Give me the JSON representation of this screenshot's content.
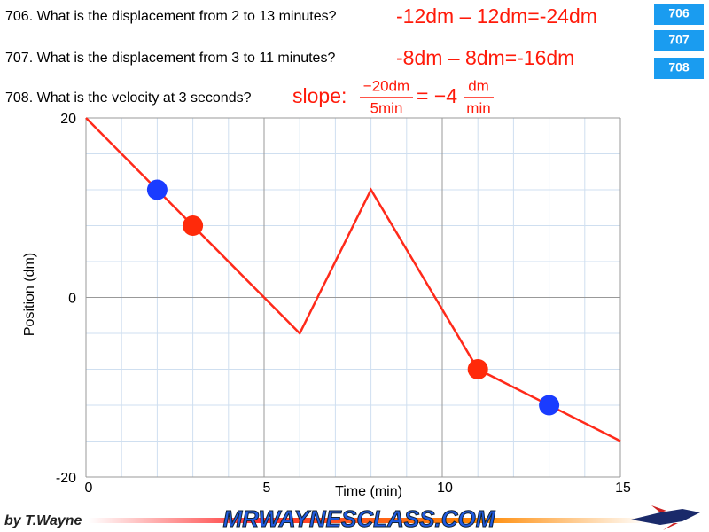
{
  "questions": [
    {
      "text": "706. What is the displacement from 2 to 13 minutes?",
      "answer": "-12dm – 12dm=-24dm"
    },
    {
      "text": "707. What is the displacement from 3 to 11 minutes?",
      "answer": "-8dm – 8dm=-16dm"
    },
    {
      "text": "708. What is the velocity at 3 seconds?",
      "answer": {
        "label": "slope:",
        "numerator": "−20dm",
        "denominator": "5min",
        "result": "= −4",
        "unit_numerator": "dm",
        "unit_denominator": "min"
      }
    }
  ],
  "buttons": [
    "706",
    "707",
    "708"
  ],
  "footer": {
    "author": "by T.Wayne",
    "logo": "MRWAYNESCLASS.COM"
  },
  "chart_data": {
    "type": "line",
    "x_label": "Time (min)",
    "y_label": "Position (dm)",
    "xlim": [
      0,
      15
    ],
    "ylim": [
      -20,
      20
    ],
    "xticks": [
      0,
      5,
      10,
      15
    ],
    "yticks": [
      -20,
      0,
      20
    ],
    "grid": true,
    "x_minor_step": 1,
    "y_minor_step": 4,
    "series": [
      {
        "color": "#ff2a1a",
        "x": [
          0,
          6,
          8,
          11,
          15
        ],
        "values": [
          20,
          -4,
          12,
          -8,
          -16
        ]
      }
    ],
    "markers": [
      {
        "color": "#1a3cff",
        "x": [
          2,
          13
        ],
        "values": [
          12,
          -12
        ]
      },
      {
        "color": "#ff2a0a",
        "x": [
          3,
          11
        ],
        "values": [
          8,
          -8
        ]
      }
    ]
  }
}
